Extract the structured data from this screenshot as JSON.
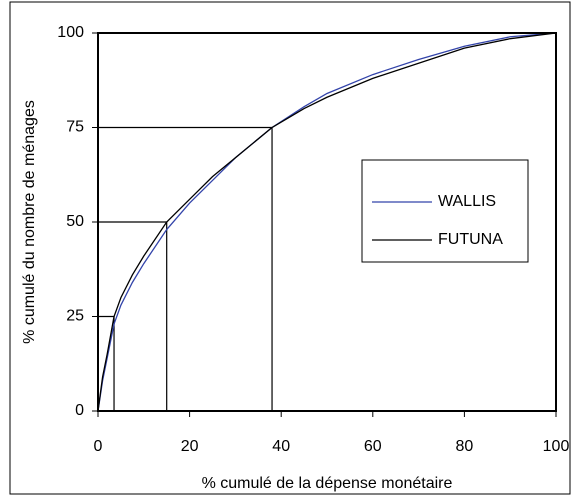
{
  "chart_data": {
    "type": "line",
    "xlabel": "% cumulé de la dépense monétaire",
    "ylabel": "% cumulé du nombre de ménages",
    "x": [
      0,
      1,
      2,
      3.5,
      5,
      7.5,
      10,
      15,
      20,
      25,
      30,
      38,
      45,
      50,
      60,
      70,
      80,
      90,
      100
    ],
    "series": [
      {
        "name": "WALLIS",
        "color": "#3344aa",
        "values": [
          0,
          8,
          14,
          23,
          28,
          34,
          39,
          48,
          55,
          61,
          67,
          75,
          80.5,
          84,
          89,
          93,
          96.5,
          99,
          100
        ]
      },
      {
        "name": "FUTUNA",
        "color": "#000000",
        "values": [
          0,
          9,
          15,
          25,
          30,
          36,
          41,
          50,
          56,
          62,
          67,
          75,
          80,
          83,
          88,
          92,
          96,
          98.5,
          100
        ]
      }
    ],
    "reference_lines": [
      {
        "x": 3.5,
        "y": 25
      },
      {
        "x": 15,
        "y": 50
      },
      {
        "x": 38,
        "y": 75
      }
    ],
    "xlim": [
      0,
      100
    ],
    "xticks": [
      0,
      20,
      40,
      60,
      80,
      100
    ],
    "ylim": [
      0,
      100
    ],
    "yticks": [
      0,
      25,
      50,
      75,
      100
    ],
    "legend": "right"
  }
}
